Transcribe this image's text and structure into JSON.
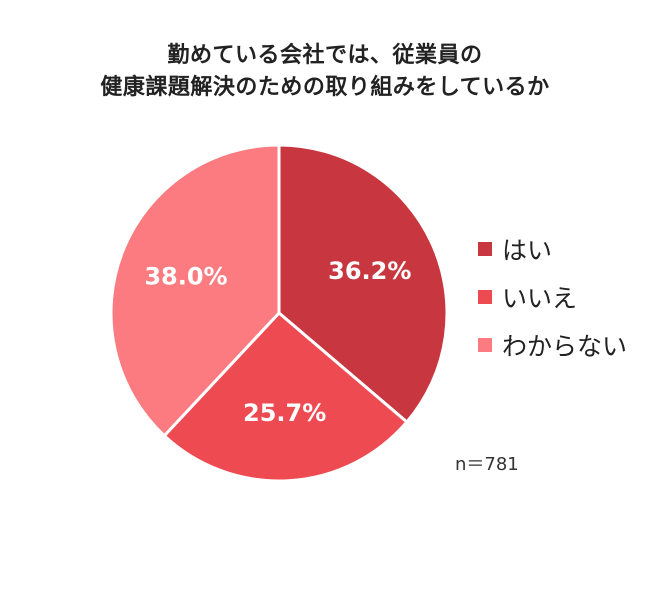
{
  "chart_data": {
    "type": "pie",
    "title_lines": [
      "勤めている会社では、従業員の",
      "健康課題解決のための取り組みをしているか"
    ],
    "categories": [
      "はい",
      "いいえ",
      "わからない"
    ],
    "values": [
      36.2,
      25.7,
      38.0
    ],
    "labels": [
      "36.2%",
      "25.7%",
      "38.0%"
    ],
    "colors": [
      "#c8373f",
      "#ee4a52",
      "#fb7b80"
    ],
    "legend_position": "right",
    "start_angle": "top (12 o'clock), clockwise",
    "annotation": "n＝781"
  }
}
